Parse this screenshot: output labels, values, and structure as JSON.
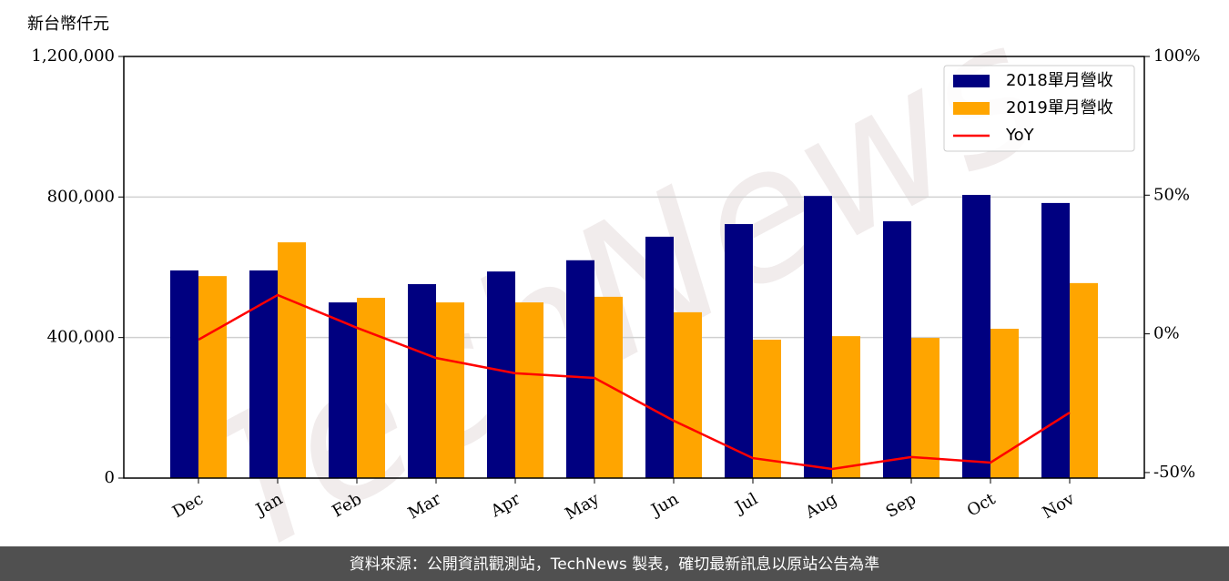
{
  "chart_data": {
    "type": "bar_line",
    "ylabel": "新台幣仟元",
    "watermark": "TechNews",
    "footer": "資料來源：公開資訊觀測站，TechNews 製表，確切最新訊息以原站公告為準",
    "categories": [
      "Dec",
      "Jan",
      "Feb",
      "Mar",
      "Apr",
      "May",
      "Jun",
      "Jul",
      "Aug",
      "Sep",
      "Oct",
      "Nov"
    ],
    "series": [
      {
        "name": "2018單月營收",
        "color": "#000080",
        "kind": "bar",
        "values": [
          591000,
          591000,
          500000,
          552000,
          588000,
          620000,
          687000,
          723000,
          803000,
          731000,
          806000,
          783000
        ]
      },
      {
        "name": "2019單月營收",
        "color": "#ffa500",
        "kind": "bar",
        "values": [
          575000,
          671000,
          513000,
          500000,
          500000,
          516000,
          472000,
          394000,
          404000,
          399000,
          425000,
          555000
        ]
      },
      {
        "name": "YoY",
        "color": "#ff0000",
        "kind": "line",
        "axis": "y2",
        "values": [
          -2.1,
          14,
          2.2,
          -8.7,
          -14.2,
          -15.9,
          -31.3,
          -44.8,
          -48.7,
          -44.4,
          -46.4,
          -28.4
        ]
      }
    ],
    "ylim": [
      0,
      1200000
    ],
    "yticks": [
      0,
      {
        "value": 400000,
        "label": "400,000"
      },
      {
        "value": 800000,
        "label": "800,000"
      },
      {
        "value": 1200000,
        "label": "1,200,000"
      }
    ],
    "y2lim": [
      -52,
      100
    ],
    "y2ticks": [
      {
        "value": -50,
        "label": "-50%"
      },
      {
        "value": 0,
        "label": "0%"
      },
      {
        "value": 50,
        "label": "50%"
      },
      {
        "value": 100,
        "label": "100%"
      }
    ],
    "grid": true,
    "legend": "upper-right"
  }
}
